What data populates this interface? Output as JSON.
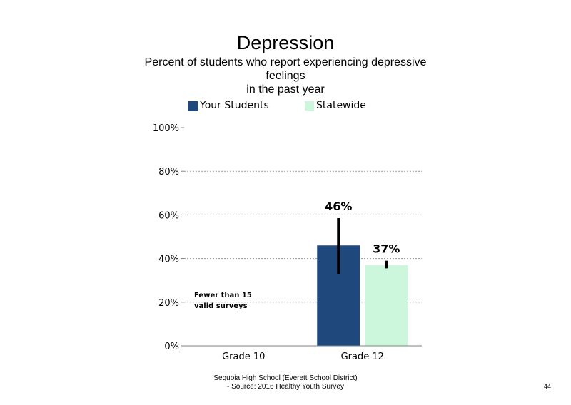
{
  "chart_data": {
    "type": "bar",
    "title": "Depression",
    "subtitle_lines": [
      "Percent of students who report experiencing depressive",
      "feelings",
      "in the past year"
    ],
    "categories": [
      "Grade 10",
      "Grade 12"
    ],
    "series": [
      {
        "name": "Your Students",
        "color": "#1f497d",
        "values": [
          null,
          46
        ],
        "labels": [
          "",
          "46%"
        ],
        "error_low": [
          null,
          33
        ],
        "error_high": [
          null,
          58.5
        ]
      },
      {
        "name": "Statewide",
        "color": "#ccf7dc",
        "values": [
          null,
          37
        ],
        "labels": [
          "",
          "37%"
        ],
        "error_low": [
          null,
          35.5
        ],
        "error_high": [
          null,
          39
        ]
      }
    ],
    "ylim": [
      0,
      100
    ],
    "yticks": [
      0,
      20,
      40,
      60,
      80,
      100
    ],
    "ytick_labels": [
      "0%",
      "20%",
      "40%",
      "60%",
      "80%",
      "100%"
    ],
    "grid": true,
    "legend_position": "top",
    "annotations": [
      {
        "category": "Grade 10",
        "lines": [
          "Fewer than 15",
          "valid surveys"
        ]
      }
    ]
  },
  "footer": {
    "line1": "Sequoia High School (Everett School District)",
    "line2": "- Source: 2016 Healthy  Youth Survey"
  },
  "page_number": "44"
}
